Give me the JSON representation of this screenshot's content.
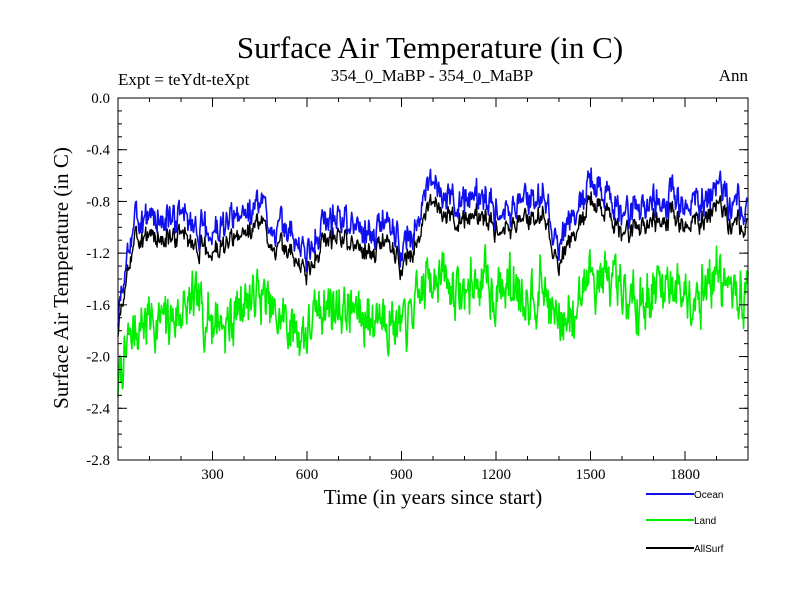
{
  "chart_data": {
    "type": "line",
    "title": "Surface Air Temperature (in C)",
    "subtitle_left": "Expt = teYdt-teXpt",
    "subtitle_center": "354_0_MaBP - 354_0_MaBP",
    "subtitle_right": "Ann",
    "xlabel": "Time (in years since start)",
    "ylabel": "Surface Air Temperature (in C)",
    "xlim": [
      0,
      2000
    ],
    "ylim": [
      -2.8,
      0.0
    ],
    "x_ticks": [
      300,
      600,
      900,
      1200,
      1500,
      1800
    ],
    "x_tick_labels": [
      "300",
      "600",
      "900",
      "1200",
      "1500",
      "1800"
    ],
    "y_ticks": [
      0.0,
      -0.4,
      -0.8,
      -1.2,
      -1.6,
      -2.0,
      -2.4,
      -2.8
    ],
    "y_tick_labels": [
      "0.0",
      "-0.4",
      "-0.8",
      "-1.2",
      "-1.6",
      "-2.0",
      "-2.4",
      "-2.8"
    ],
    "x_minor_step": 100,
    "y_minor_step": 0.1,
    "legend_position": "bottom-right, outside plot",
    "series": [
      {
        "name": "Land",
        "color": "#00ee00",
        "x": [
          0,
          50,
          100,
          150,
          200,
          250,
          300,
          350,
          400,
          450,
          500,
          550,
          600,
          650,
          700,
          750,
          800,
          850,
          900,
          950,
          1000,
          1050,
          1100,
          1150,
          1200,
          1250,
          1300,
          1350,
          1400,
          1450,
          1500,
          1550,
          1600,
          1650,
          1700,
          1750,
          1800,
          1850,
          1900,
          1950,
          2000
        ],
        "values": [
          -2.2,
          -1.8,
          -1.7,
          -1.75,
          -1.65,
          -1.6,
          -1.7,
          -1.75,
          -1.55,
          -1.5,
          -1.7,
          -1.75,
          -1.8,
          -1.6,
          -1.6,
          -1.65,
          -1.7,
          -1.65,
          -1.8,
          -1.6,
          -1.3,
          -1.45,
          -1.5,
          -1.4,
          -1.5,
          -1.45,
          -1.5,
          -1.45,
          -1.8,
          -1.6,
          -1.35,
          -1.4,
          -1.6,
          -1.55,
          -1.5,
          -1.4,
          -1.5,
          -1.45,
          -1.35,
          -1.55,
          -1.5
        ]
      },
      {
        "name": "AllSurf",
        "color": "#000000",
        "x": [
          0,
          50,
          100,
          150,
          200,
          250,
          300,
          350,
          400,
          450,
          500,
          550,
          600,
          650,
          700,
          750,
          800,
          850,
          900,
          950,
          1000,
          1050,
          1100,
          1150,
          1200,
          1250,
          1300,
          1350,
          1400,
          1450,
          1500,
          1550,
          1600,
          1650,
          1700,
          1750,
          1800,
          1850,
          1900,
          1950,
          2000
        ],
        "values": [
          -1.8,
          -1.1,
          -1.05,
          -1.1,
          -1.05,
          -1.15,
          -1.2,
          -1.15,
          -1.05,
          -0.95,
          -1.15,
          -1.2,
          -1.35,
          -1.1,
          -1.05,
          -1.15,
          -1.2,
          -1.1,
          -1.3,
          -1.1,
          -0.8,
          -0.9,
          -0.95,
          -0.9,
          -1.0,
          -0.95,
          -0.95,
          -0.9,
          -1.3,
          -1.05,
          -0.8,
          -0.85,
          -1.05,
          -1.0,
          -0.95,
          -0.9,
          -1.0,
          -0.95,
          -0.8,
          -1.0,
          -0.95
        ]
      },
      {
        "name": "Ocean",
        "color": "#1010ee",
        "x": [
          0,
          50,
          100,
          150,
          200,
          250,
          300,
          350,
          400,
          450,
          500,
          550,
          600,
          650,
          700,
          750,
          800,
          850,
          900,
          950,
          1000,
          1050,
          1100,
          1150,
          1200,
          1250,
          1300,
          1350,
          1400,
          1450,
          1500,
          1550,
          1600,
          1650,
          1700,
          1750,
          1800,
          1850,
          1900,
          1950,
          2000
        ],
        "values": [
          -1.7,
          -0.95,
          -0.9,
          -0.95,
          -0.9,
          -1.0,
          -1.05,
          -1.0,
          -0.9,
          -0.8,
          -1.0,
          -1.05,
          -1.2,
          -0.95,
          -0.9,
          -1.0,
          -1.05,
          -0.95,
          -1.15,
          -0.95,
          -0.65,
          -0.75,
          -0.8,
          -0.75,
          -0.85,
          -0.8,
          -0.8,
          -0.75,
          -1.15,
          -0.9,
          -0.65,
          -0.7,
          -0.9,
          -0.85,
          -0.8,
          -0.75,
          -0.85,
          -0.8,
          -0.65,
          -0.85,
          -0.8
        ]
      }
    ],
    "legend": [
      {
        "name": "Ocean",
        "color": "#1010ee"
      },
      {
        "name": "Land",
        "color": "#00ee00"
      },
      {
        "name": "AllSurf",
        "color": "#000000"
      }
    ]
  }
}
